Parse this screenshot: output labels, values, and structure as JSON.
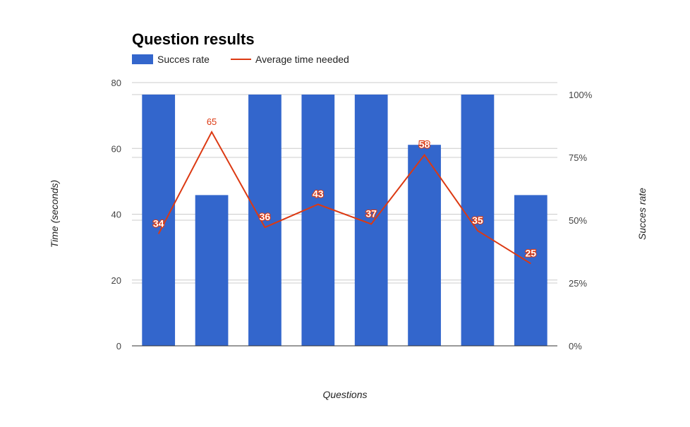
{
  "chart_data": {
    "type": "bar",
    "title": "Question results",
    "xlabel": "Questions",
    "ylabel_left": "Time (seconds)",
    "ylabel_right": "Succes rate",
    "categories": [
      "",
      "",
      "",
      "",
      "",
      "",
      "",
      ""
    ],
    "left_axis": {
      "min": 0,
      "max": 80,
      "ticks": [
        "0",
        "20",
        "40",
        "60",
        "80"
      ]
    },
    "right_axis": {
      "min": 0,
      "max": 100,
      "ticks": [
        "0%",
        "25%",
        "50%",
        "75%",
        "100%"
      ]
    },
    "series": [
      {
        "name": "Succes rate",
        "type": "bar",
        "axis": "right",
        "color": "#3366cc",
        "values": [
          100,
          60,
          100,
          100,
          100,
          80,
          100,
          60
        ]
      },
      {
        "name": "Average time needed",
        "type": "line",
        "axis": "left",
        "color": "#dc3912",
        "values": [
          34,
          65,
          36,
          43,
          37,
          58,
          35,
          25
        ],
        "labels": [
          "34",
          "65",
          "36",
          "43",
          "37",
          "58",
          "35",
          "25"
        ]
      }
    ],
    "legend_position": "top-left",
    "grid": true
  }
}
